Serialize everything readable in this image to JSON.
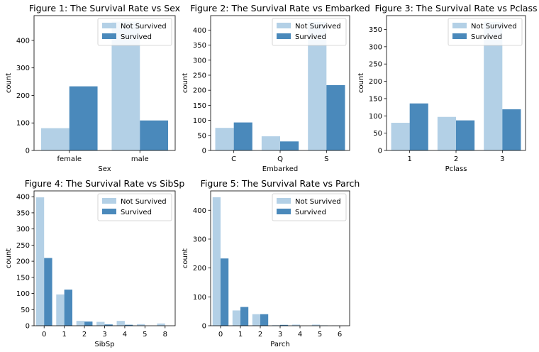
{
  "colors": {
    "not_survived": "#b3d0e6",
    "survived": "#4a89bb",
    "axis": "#000000",
    "legend_border": "#cccccc"
  },
  "chart_data": [
    {
      "type": "bar",
      "title": "Figure 1: The Survival Rate vs Sex",
      "xlabel": "Sex",
      "ylabel": "count",
      "categories": [
        "female",
        "male"
      ],
      "series": [
        {
          "name": "Not Survived",
          "values": [
            81,
            468
          ]
        },
        {
          "name": "Survived",
          "values": [
            233,
            109
          ]
        }
      ],
      "ylim": [
        0,
        490
      ],
      "yticks": [
        0,
        100,
        200,
        300,
        400
      ],
      "legend": "top-right",
      "grid": false
    },
    {
      "type": "bar",
      "title": "Figure 2: The Survival Rate vs Embarked",
      "xlabel": "Embarked",
      "ylabel": "count",
      "categories": [
        "C",
        "Q",
        "S"
      ],
      "series": [
        {
          "name": "Not Survived",
          "values": [
            75,
            47,
            427
          ]
        },
        {
          "name": "Survived",
          "values": [
            93,
            30,
            217
          ]
        }
      ],
      "ylim": [
        0,
        448
      ],
      "yticks": [
        0,
        50,
        100,
        150,
        200,
        250,
        300,
        350,
        400
      ],
      "legend": "top-right",
      "grid": false
    },
    {
      "type": "bar",
      "title": "Figure 3: The Survival Rate vs Pclass",
      "xlabel": "Pclass",
      "ylabel": "count",
      "categories": [
        "1",
        "2",
        "3"
      ],
      "series": [
        {
          "name": "Not Survived",
          "values": [
            80,
            97,
            372
          ]
        },
        {
          "name": "Survived",
          "values": [
            136,
            87,
            119
          ]
        }
      ],
      "ylim": [
        0,
        390
      ],
      "yticks": [
        0,
        50,
        100,
        150,
        200,
        250,
        300,
        350
      ],
      "legend": "top-right",
      "grid": false
    },
    {
      "type": "bar",
      "title": "Figure 4: The Survival Rate vs SibSp",
      "xlabel": "SibSp",
      "ylabel": "count",
      "categories": [
        "0",
        "1",
        "2",
        "3",
        "4",
        "5",
        "8"
      ],
      "series": [
        {
          "name": "Not Survived",
          "values": [
            398,
            97,
            15,
            12,
            15,
            5,
            7
          ]
        },
        {
          "name": "Survived",
          "values": [
            210,
            112,
            13,
            4,
            3,
            0,
            0
          ]
        }
      ],
      "ylim": [
        0,
        418
      ],
      "yticks": [
        0,
        50,
        100,
        150,
        200,
        250,
        300,
        350,
        400
      ],
      "legend": "top-right",
      "grid": false
    },
    {
      "type": "bar",
      "title": "Figure 5: The Survival Rate vs Parch",
      "xlabel": "Parch",
      "ylabel": "count",
      "categories": [
        "0",
        "1",
        "2",
        "3",
        "4",
        "5",
        "6"
      ],
      "series": [
        {
          "name": "Not Survived",
          "values": [
            445,
            53,
            40,
            2,
            4,
            4,
            1
          ]
        },
        {
          "name": "Survived",
          "values": [
            233,
            65,
            40,
            3,
            0,
            1,
            0
          ]
        }
      ],
      "ylim": [
        0,
        467
      ],
      "yticks": [
        0,
        100,
        200,
        300,
        400
      ],
      "legend": "top-right",
      "grid": false
    }
  ]
}
